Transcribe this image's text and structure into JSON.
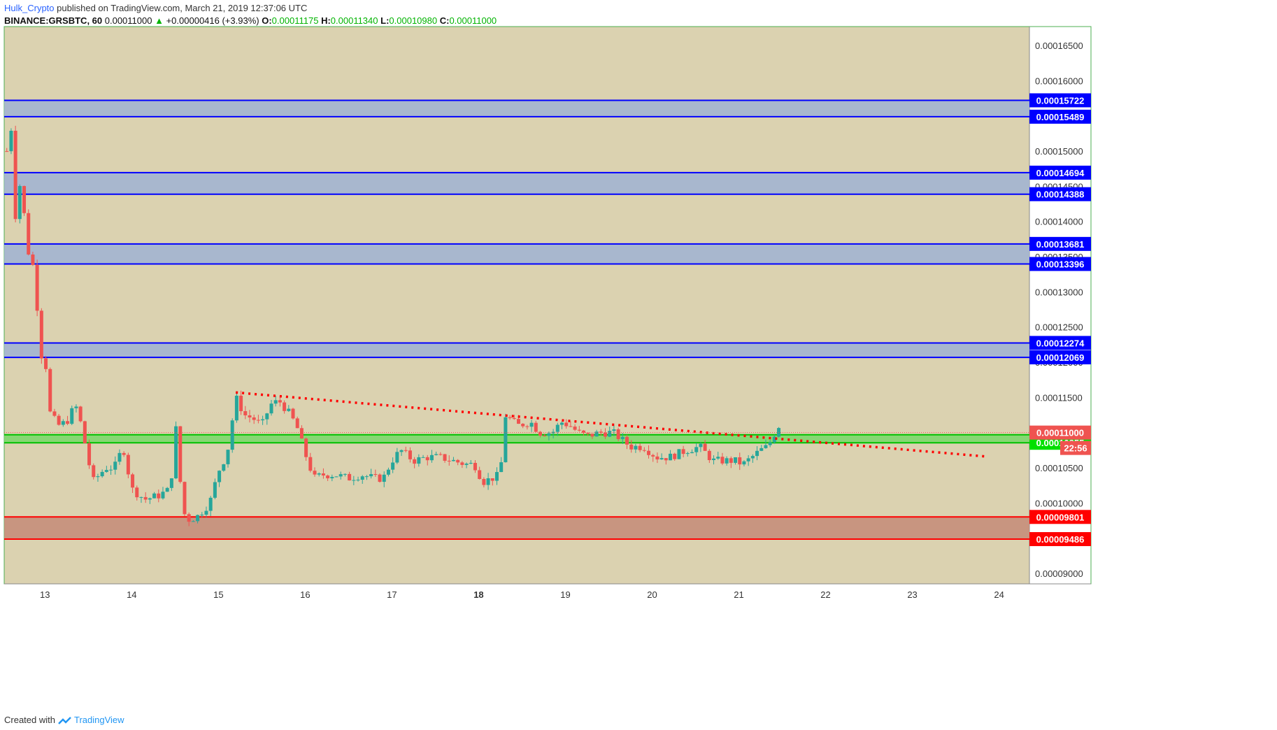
{
  "header": {
    "author": "Hulk_Crypto",
    "published_text": "published on TradingView.com, March 21, 2019 12:37:06 UTC",
    "symbol": "BINANCE:GRSBTC, 60",
    "last_price": "0.00011000",
    "arrow": "▲",
    "change": "+0.00000416 (+3.93%)",
    "o_label": "O:",
    "o_value": "0.00011175",
    "h_label": "H:",
    "h_value": "0.00011340",
    "l_label": "L:",
    "l_value": "0.00010980",
    "c_label": "C:",
    "c_value": "0.00011000"
  },
  "footer": {
    "created_with": "Created with",
    "brand": "TradingView"
  },
  "colors": {
    "background": "#dbd2b0",
    "up": "#26a69a",
    "down": "#ef5350",
    "zone_blue_fill": "#9fb3d3",
    "zone_blue_line": "#0000ff",
    "zone_green_fill": "#78d868",
    "zone_green_line": "#00c000",
    "zone_red_fill": "#c48b78",
    "zone_red_line": "#ff0000",
    "trendline": "#ff0000",
    "price_label": "#ef5350",
    "green_label": "#00e000",
    "red_label": "#ff0000",
    "blue_label": "#0000ff"
  },
  "chart_data": {
    "type": "candlestick",
    "ylim": [
      8.85e-05,
      0.0001677
    ],
    "xlim": [
      12.53,
      24.35
    ],
    "y_ticks": [
      "0.00009000",
      "0.00009500",
      "0.00010000",
      "0.00010500",
      "0.00011000",
      "0.00011500",
      "0.00012000",
      "0.00012500",
      "0.00013000",
      "0.00013500",
      "0.00014000",
      "0.00014500",
      "0.00015000",
      "0.00015500",
      "0.00016000",
      "0.00016500"
    ],
    "x_ticks": [
      {
        "x": 13,
        "label": "13",
        "bold": false
      },
      {
        "x": 14,
        "label": "14",
        "bold": false
      },
      {
        "x": 15,
        "label": "15",
        "bold": false
      },
      {
        "x": 16,
        "label": "16",
        "bold": false
      },
      {
        "x": 17,
        "label": "17",
        "bold": false
      },
      {
        "x": 18,
        "label": "18",
        "bold": true
      },
      {
        "x": 19,
        "label": "19",
        "bold": false
      },
      {
        "x": 20,
        "label": "20",
        "bold": false
      },
      {
        "x": 21,
        "label": "21",
        "bold": false
      },
      {
        "x": 22,
        "label": "22",
        "bold": false
      },
      {
        "x": 23,
        "label": "23",
        "bold": false
      },
      {
        "x": 24,
        "label": "24",
        "bold": false
      }
    ],
    "zones": [
      {
        "type": "blue",
        "top": "0.00015722",
        "bottom": "0.00015489"
      },
      {
        "type": "blue",
        "top": "0.00014694",
        "bottom": "0.00014388"
      },
      {
        "type": "blue",
        "top": "0.00013681",
        "bottom": "0.00013396"
      },
      {
        "type": "blue",
        "top": "0.00012274",
        "bottom": "0.00012069"
      },
      {
        "type": "green",
        "top": "0.00010969",
        "bottom": "0.00010855"
      },
      {
        "type": "red",
        "top": "0.00009801",
        "bottom": "0.00009486"
      }
    ],
    "trendline": {
      "x1": 15.2,
      "y1": 0.0001157,
      "x2": 23.85,
      "y2": 0.0001066
    },
    "current_price": {
      "value": 0.00011,
      "label": "0.00011000",
      "countdown": "22:56"
    },
    "candle_anchors": [
      [
        12.56,
        0.00015
      ],
      [
        12.6,
        0.0001565
      ],
      [
        12.65,
        0.00014
      ],
      [
        12.72,
        0.000146
      ],
      [
        12.8,
        0.000136
      ],
      [
        12.88,
        0.000133
      ],
      [
        12.95,
        0.000121
      ],
      [
        13.0,
        0.000121
      ],
      [
        13.05,
        0.000113
      ],
      [
        13.15,
        0.000111
      ],
      [
        13.25,
        0.0001115
      ],
      [
        13.35,
        0.000114
      ],
      [
        13.42,
        0.000111
      ],
      [
        13.55,
        0.000103
      ],
      [
        13.7,
        0.000105
      ],
      [
        13.8,
        0.000105
      ],
      [
        13.9,
        0.000108
      ],
      [
        14.0,
        0.000102
      ],
      [
        14.15,
        0.0001005
      ],
      [
        14.3,
        0.000101
      ],
      [
        14.45,
        0.000102
      ],
      [
        14.5,
        0.000112
      ],
      [
        14.56,
        0.000103
      ],
      [
        14.62,
        9.75e-05
      ],
      [
        14.75,
        9.8e-05
      ],
      [
        14.9,
        0.0001
      ],
      [
        15.0,
        0.0001045
      ],
      [
        15.1,
        0.000107
      ],
      [
        15.2,
        0.000115
      ],
      [
        15.3,
        0.0001125
      ],
      [
        15.4,
        0.000112
      ],
      [
        15.5,
        0.000111
      ],
      [
        15.6,
        0.000114
      ],
      [
        15.7,
        0.0001145
      ],
      [
        15.8,
        0.000113
      ],
      [
        15.9,
        0.000111
      ],
      [
        16.0,
        0.000107
      ],
      [
        16.1,
        0.0001035
      ],
      [
        16.2,
        0.000104
      ],
      [
        16.35,
        0.000104
      ],
      [
        16.5,
        0.0001035
      ],
      [
        16.65,
        0.000104
      ],
      [
        16.8,
        0.0001035
      ],
      [
        16.9,
        0.0001035
      ],
      [
        17.0,
        0.000106
      ],
      [
        17.1,
        0.0001075
      ],
      [
        17.25,
        0.000106
      ],
      [
        17.4,
        0.0001065
      ],
      [
        17.55,
        0.0001065
      ],
      [
        17.7,
        0.000106
      ],
      [
        17.85,
        0.0001055
      ],
      [
        17.95,
        0.0001055
      ],
      [
        18.05,
        0.000103
      ],
      [
        18.15,
        0.0001035
      ],
      [
        18.25,
        0.000104
      ],
      [
        18.3,
        0.0001125
      ],
      [
        18.45,
        0.000111
      ],
      [
        18.6,
        0.0001115
      ],
      [
        18.7,
        0.00011
      ],
      [
        18.85,
        0.00011
      ],
      [
        18.95,
        0.0001115
      ],
      [
        19.05,
        0.000111
      ],
      [
        19.15,
        0.00011
      ],
      [
        19.25,
        0.0001095
      ],
      [
        19.4,
        0.00011
      ],
      [
        19.55,
        0.00011
      ],
      [
        19.65,
        0.000109
      ],
      [
        19.75,
        0.000108
      ],
      [
        19.9,
        0.000108
      ],
      [
        20.05,
        0.0001065
      ],
      [
        20.2,
        0.0001065
      ],
      [
        20.4,
        0.0001075
      ],
      [
        20.55,
        0.000108
      ],
      [
        20.7,
        0.000106
      ],
      [
        20.85,
        0.000106
      ],
      [
        20.95,
        0.000106
      ],
      [
        21.05,
        0.0001055
      ],
      [
        21.15,
        0.0001065
      ],
      [
        21.25,
        0.0001075
      ],
      [
        21.33,
        0.000108
      ],
      [
        21.4,
        0.0001095
      ],
      [
        21.45,
        0.0001112
      ],
      [
        21.5,
        0.00011
      ]
    ]
  }
}
